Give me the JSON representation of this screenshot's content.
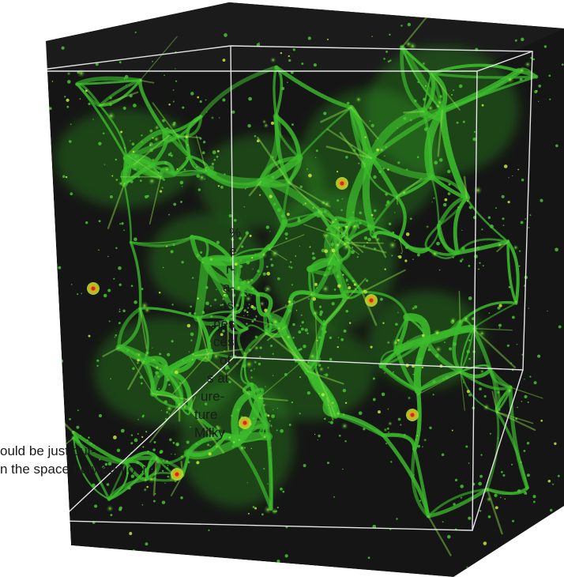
{
  "caption_fragments": [
    "%",
    "e",
    "r-",
    "a-",
    "as",
    "nes",
    "ces",
    "of",
    "s at",
    "ure-",
    "ture",
    "Milky",
    "ould be just out-",
    "n the space between our"
  ],
  "colors": {
    "page_background": "#ffffff",
    "cube_dark": "#151515",
    "filament_green": "#3fbf2f",
    "halo_yellow": "#d8e030",
    "halo_red": "#d23a1a",
    "wireframe": "#e8e8e8",
    "caption_text": "#1a1a1a"
  }
}
